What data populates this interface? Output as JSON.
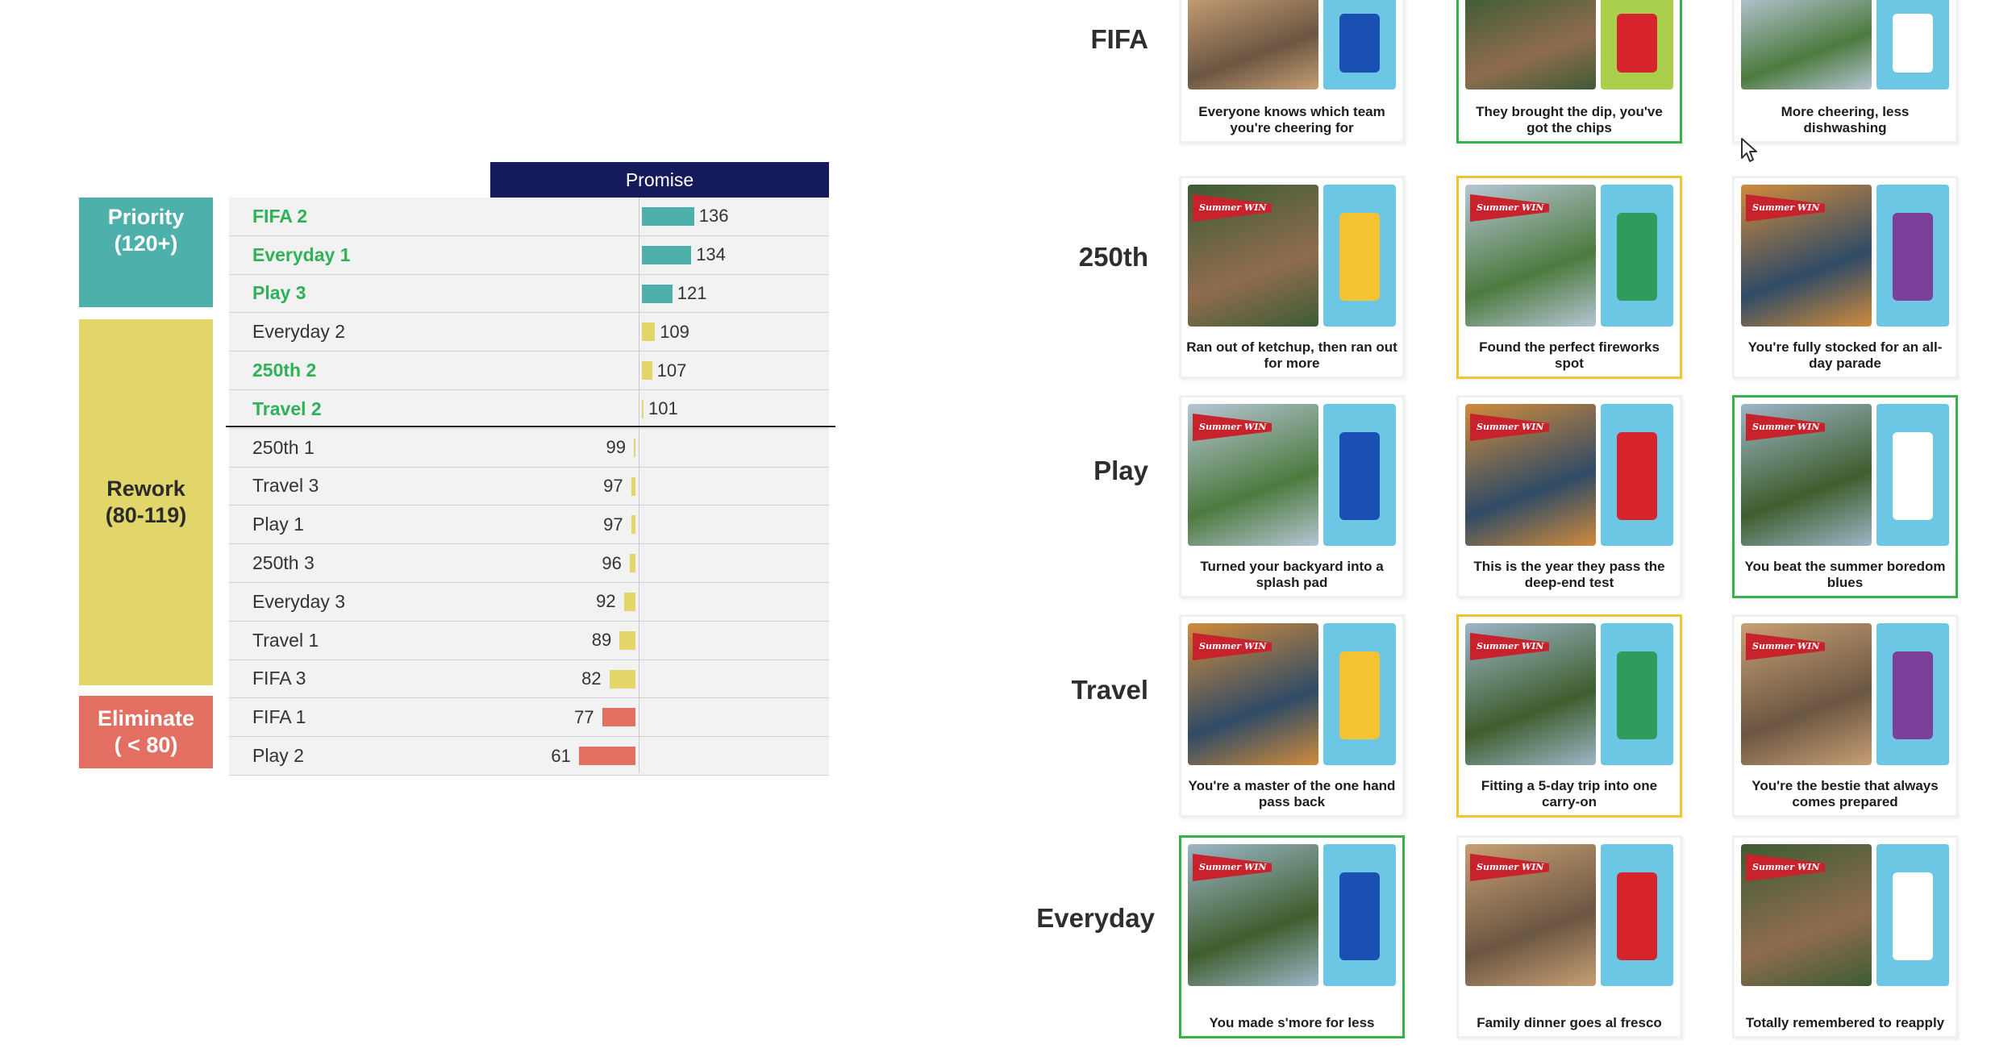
{
  "chart": {
    "header": "Promise",
    "categories": [
      {
        "label": "Priority\n(120+)",
        "color": "#4eb0ab"
      },
      {
        "label": "Rework\n(80-119)",
        "color": "#e2d56a"
      },
      {
        "label": "Eliminate\n( < 80)",
        "color": "#e26f62"
      }
    ],
    "colors": {
      "priority": "#4eb0ab",
      "rework": "#e2d56a",
      "eliminate": "#e26f62",
      "highlight_text": "#2fb157"
    },
    "baseline": 100
  },
  "chart_data": {
    "type": "bar",
    "title": "Promise",
    "categories": [
      "FIFA 2",
      "Everyday 1",
      "Play 3",
      "Everyday 2",
      "250th 2",
      "Travel 2",
      "250th 1",
      "Travel 3",
      "Play 1",
      "250th 3",
      "Everyday 3",
      "Travel 1",
      "FIFA 3",
      "FIFA 1",
      "Play 2"
    ],
    "values": [
      136,
      134,
      121,
      109,
      107,
      101,
      99,
      97,
      97,
      96,
      92,
      89,
      82,
      77,
      61
    ],
    "highlighted": [
      true,
      true,
      true,
      false,
      true,
      true,
      false,
      false,
      false,
      false,
      false,
      false,
      false,
      false,
      false
    ],
    "baseline": 100,
    "bands": [
      {
        "name": "Priority",
        "range": "120+"
      },
      {
        "name": "Rework",
        "range": "80-119"
      },
      {
        "name": "Eliminate",
        "range": "< 80"
      }
    ]
  },
  "grid": {
    "rows": [
      {
        "label": "FIFA",
        "cards": [
          {
            "caption": "Everyone knows which team you're cheering for",
            "highlight": "none",
            "pennant": false
          },
          {
            "caption": "They brought the dip, you've got the chips",
            "highlight": "green",
            "pennant": false
          },
          {
            "caption": "More cheering, less dishwashing",
            "highlight": "none",
            "pennant": false
          }
        ]
      },
      {
        "label": "250th",
        "cards": [
          {
            "caption": "Ran out of ketchup, then ran out for more",
            "highlight": "none",
            "pennant": true
          },
          {
            "caption": "Found the perfect fireworks spot",
            "highlight": "yellow",
            "pennant": true
          },
          {
            "caption": "You're fully stocked for an all-day parade",
            "highlight": "none",
            "pennant": true
          }
        ]
      },
      {
        "label": "Play",
        "cards": [
          {
            "caption": "Turned your backyard into a splash pad",
            "highlight": "none",
            "pennant": true
          },
          {
            "caption": "This is the year they pass the deep-end test",
            "highlight": "none",
            "pennant": true
          },
          {
            "caption": "You beat the summer boredom blues",
            "highlight": "green",
            "pennant": true
          }
        ]
      },
      {
        "label": "Travel",
        "cards": [
          {
            "caption": "You're a master of the one hand pass back",
            "highlight": "none",
            "pennant": true
          },
          {
            "caption": "Fitting a 5-day trip into one carry-on",
            "highlight": "yellow",
            "pennant": true
          },
          {
            "caption": "You're the bestie that always comes prepared",
            "highlight": "none",
            "pennant": true
          }
        ]
      },
      {
        "label": "Everyday",
        "cards": [
          {
            "caption": "You made s'more for less",
            "highlight": "green",
            "pennant": true
          },
          {
            "caption": "Family dinner goes al fresco",
            "highlight": "none",
            "pennant": true
          },
          {
            "caption": "Totally remembered to reapply",
            "highlight": "none",
            "pennant": true
          }
        ]
      }
    ],
    "pennant_text": "Summer WIN",
    "highlight_colors": {
      "green": "#35b34a",
      "yellow": "#f0c531"
    }
  },
  "cursor": {
    "icon": "mouse-pointer-icon"
  }
}
